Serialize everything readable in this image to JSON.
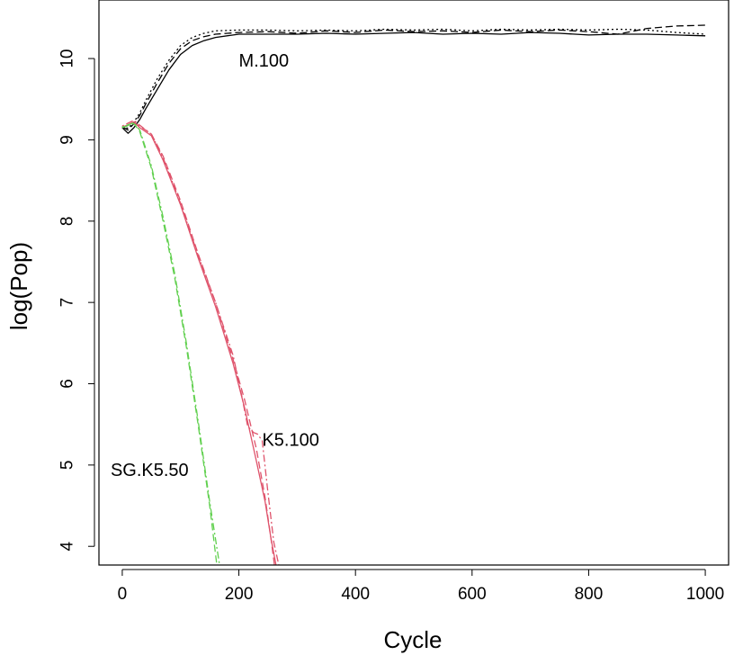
{
  "chart_data": {
    "type": "line",
    "title": "",
    "xlabel": "Cycle",
    "ylabel": "log(Pop)",
    "xlim": [
      -40,
      1040
    ],
    "ylim": [
      3.77,
      10.72
    ],
    "xticks": [
      0,
      200,
      400,
      600,
      800,
      1000
    ],
    "yticks": [
      4,
      5,
      6,
      7,
      8,
      9,
      10
    ],
    "grid": false,
    "legend": "none",
    "colors": {
      "M.100": "#000000",
      "K5.100": "#DF536B",
      "SG.K5.50": "#61D04F"
    },
    "annotations": [
      {
        "text": "M.100",
        "x": 200,
        "y": 9.97
      },
      {
        "text": "K5.100",
        "x": 240,
        "y": 5.3
      },
      {
        "text": "SG.K5.50",
        "x": -20,
        "y": 4.93
      }
    ],
    "series": [
      {
        "group": "M.100",
        "line_style": "solid",
        "x": [
          0,
          10,
          20,
          30,
          40,
          60,
          80,
          100,
          120,
          140,
          160,
          200,
          250,
          300,
          350,
          400,
          450,
          500,
          550,
          600,
          650,
          700,
          750,
          800,
          850,
          900,
          950,
          1000
        ],
        "y": [
          9.15,
          9.08,
          9.15,
          9.25,
          9.38,
          9.62,
          9.86,
          10.05,
          10.16,
          10.22,
          10.26,
          10.3,
          10.3,
          10.3,
          10.31,
          10.3,
          10.31,
          10.32,
          10.3,
          10.31,
          10.3,
          10.32,
          10.31,
          10.29,
          10.3,
          10.3,
          10.29,
          10.28
        ]
      },
      {
        "group": "M.100",
        "line_style": "dashed",
        "x": [
          0,
          10,
          20,
          30,
          40,
          60,
          80,
          100,
          120,
          140,
          160,
          200,
          250,
          300,
          350,
          400,
          450,
          500,
          550,
          600,
          650,
          700,
          750,
          800,
          850,
          900,
          950,
          1000
        ],
        "y": [
          9.16,
          9.12,
          9.2,
          9.3,
          9.44,
          9.7,
          9.94,
          10.12,
          10.22,
          10.27,
          10.3,
          10.32,
          10.33,
          10.31,
          10.34,
          10.32,
          10.35,
          10.33,
          10.34,
          10.32,
          10.35,
          10.33,
          10.35,
          10.33,
          10.3,
          10.37,
          10.4,
          10.41
        ]
      },
      {
        "group": "M.100",
        "line_style": "dotted",
        "x": [
          0,
          10,
          20,
          30,
          40,
          60,
          80,
          100,
          120,
          140,
          160,
          200,
          250,
          300,
          350,
          400,
          450,
          500,
          550,
          600,
          650,
          700,
          750,
          800,
          850,
          900,
          950,
          1000
        ],
        "y": [
          9.17,
          9.14,
          9.22,
          9.33,
          9.48,
          9.75,
          9.98,
          10.16,
          10.26,
          10.31,
          10.34,
          10.35,
          10.35,
          10.34,
          10.35,
          10.34,
          10.36,
          10.35,
          10.36,
          10.34,
          10.36,
          10.35,
          10.36,
          10.35,
          10.36,
          10.35,
          10.32,
          10.3
        ]
      },
      {
        "group": "K5.100",
        "line_style": "solid",
        "x": [
          0,
          20,
          30,
          50,
          70,
          100,
          130,
          160,
          190,
          210,
          230,
          245,
          255,
          265
        ],
        "y": [
          9.15,
          9.22,
          9.15,
          9.05,
          8.75,
          8.2,
          7.55,
          6.95,
          6.25,
          5.7,
          5.05,
          4.55,
          4.1,
          3.72
        ]
      },
      {
        "group": "K5.100",
        "line_style": "dashed",
        "x": [
          0,
          20,
          30,
          50,
          70,
          100,
          130,
          160,
          190,
          210,
          230,
          245,
          255,
          262
        ],
        "y": [
          9.16,
          9.2,
          9.17,
          9.07,
          8.8,
          8.25,
          7.6,
          7.0,
          6.3,
          5.8,
          5.2,
          4.6,
          4.1,
          3.72
        ]
      },
      {
        "group": "K5.100",
        "line_style": "dotdash",
        "x": [
          0,
          20,
          30,
          50,
          70,
          100,
          130,
          160,
          190,
          205,
          215,
          225,
          232,
          240,
          250,
          260,
          270
        ],
        "y": [
          9.17,
          9.24,
          9.18,
          9.07,
          8.78,
          8.22,
          7.58,
          7.0,
          6.35,
          5.85,
          5.48,
          5.4,
          5.38,
          5.3,
          4.65,
          4.05,
          3.72
        ]
      },
      {
        "group": "SG.K5.50",
        "line_style": "dashed",
        "x": [
          0,
          20,
          30,
          50,
          70,
          90,
          110,
          130,
          150,
          163
        ],
        "y": [
          9.15,
          9.2,
          9.1,
          8.65,
          8.0,
          7.3,
          6.45,
          5.5,
          4.5,
          3.72
        ]
      },
      {
        "group": "SG.K5.50",
        "line_style": "dotdash",
        "x": [
          0,
          20,
          30,
          50,
          70,
          90,
          110,
          130,
          150,
          168
        ],
        "y": [
          9.16,
          9.21,
          9.12,
          8.68,
          8.05,
          7.35,
          6.5,
          5.55,
          4.55,
          3.72
        ]
      }
    ]
  }
}
